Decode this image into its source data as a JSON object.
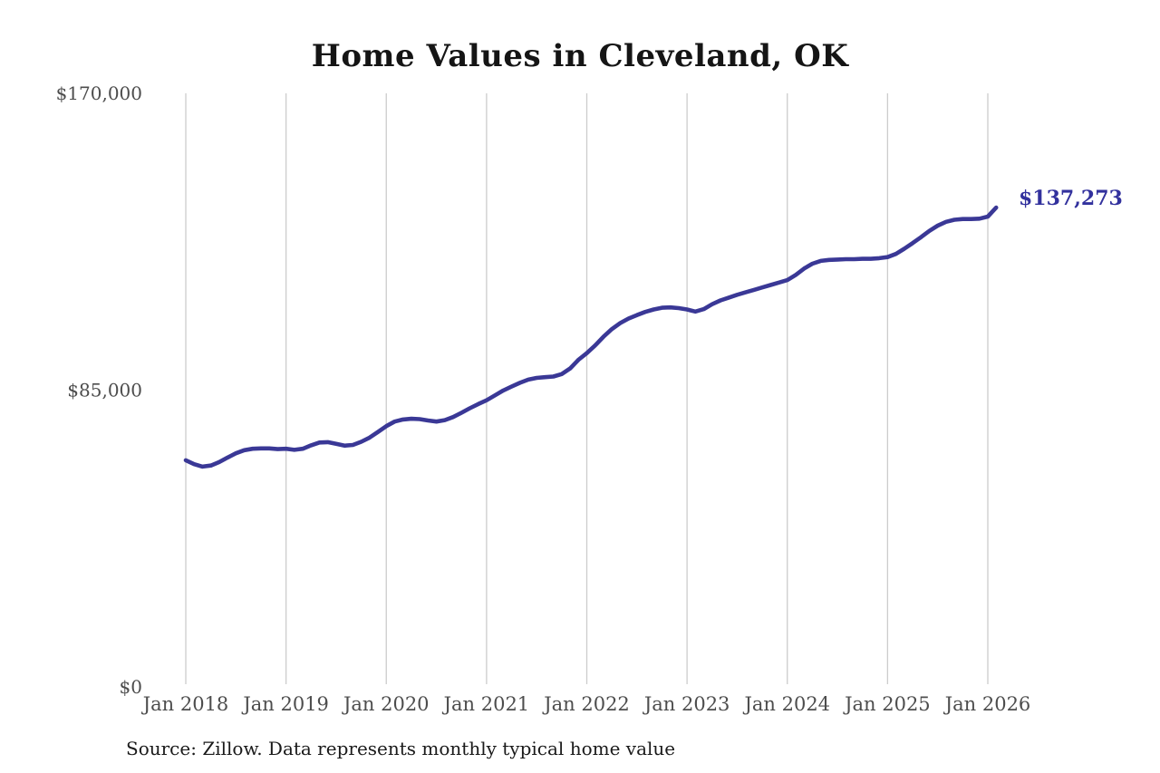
{
  "chart_data": {
    "type": "line",
    "title": "Home Values in Cleveland, OK",
    "x": [
      "2018-01",
      "2018-02",
      "2018-03",
      "2018-04",
      "2018-05",
      "2018-06",
      "2018-07",
      "2018-08",
      "2018-09",
      "2018-10",
      "2018-11",
      "2018-12",
      "2019-01",
      "2019-02",
      "2019-03",
      "2019-04",
      "2019-05",
      "2019-06",
      "2019-07",
      "2019-08",
      "2019-09",
      "2019-10",
      "2019-11",
      "2019-12",
      "2020-01",
      "2020-02",
      "2020-03",
      "2020-04",
      "2020-05",
      "2020-06",
      "2020-07",
      "2020-08",
      "2020-09",
      "2020-10",
      "2020-11",
      "2020-12",
      "2021-01",
      "2021-02",
      "2021-03",
      "2021-04",
      "2021-05",
      "2021-06",
      "2021-07",
      "2021-08",
      "2021-09",
      "2021-10",
      "2021-11",
      "2021-12",
      "2022-01",
      "2022-02",
      "2022-03",
      "2022-04",
      "2022-05",
      "2022-06",
      "2022-07",
      "2022-08",
      "2022-09",
      "2022-10",
      "2022-11",
      "2022-12",
      "2023-01",
      "2023-02",
      "2023-03",
      "2023-04",
      "2023-05",
      "2023-06",
      "2023-07",
      "2023-08",
      "2023-09",
      "2023-10",
      "2023-11",
      "2023-12",
      "2024-01",
      "2024-02",
      "2024-03",
      "2024-04",
      "2024-05",
      "2024-06",
      "2024-07",
      "2024-08",
      "2024-09",
      "2024-10",
      "2024-11",
      "2024-12",
      "2025-01",
      "2025-02",
      "2025-03",
      "2025-04",
      "2025-05",
      "2025-06",
      "2025-07",
      "2025-08",
      "2025-09",
      "2025-10",
      "2025-11",
      "2025-12",
      "2026-01",
      "2026-02"
    ],
    "values": [
      64900,
      63800,
      63100,
      63400,
      64400,
      65700,
      66900,
      67800,
      68200,
      68300,
      68300,
      68100,
      68200,
      67900,
      68200,
      69200,
      70000,
      70100,
      69600,
      69100,
      69300,
      70200,
      71400,
      73000,
      74700,
      76000,
      76600,
      76800,
      76700,
      76300,
      76000,
      76400,
      77300,
      78500,
      79800,
      81000,
      82100,
      83500,
      84900,
      86000,
      87100,
      88000,
      88500,
      88700,
      88900,
      89600,
      91200,
      93700,
      95600,
      97800,
      100300,
      102500,
      104200,
      105500,
      106500,
      107400,
      108100,
      108600,
      108700,
      108500,
      108100,
      107500,
      108200,
      109600,
      110700,
      111500,
      112300,
      113000,
      113700,
      114400,
      115100,
      115800,
      116500,
      118000,
      119800,
      121200,
      122000,
      122300,
      122400,
      122500,
      122500,
      122600,
      122600,
      122800,
      123100,
      124000,
      125500,
      127100,
      128800,
      130600,
      132100,
      133200,
      133800,
      134000,
      134000,
      134100,
      134700,
      137273
    ],
    "x_tick_labels": [
      "Jan 2018",
      "Jan 2019",
      "Jan 2020",
      "Jan 2021",
      "Jan 2022",
      "Jan 2023",
      "Jan 2024",
      "Jan 2025",
      "Jan 2026"
    ],
    "y_ticks": [
      {
        "value": 0,
        "label": "$0"
      },
      {
        "value": 85000,
        "label": "$85,000"
      },
      {
        "value": 170000,
        "label": "$170,000"
      }
    ],
    "ylim": [
      0,
      170000
    ],
    "xlabel": "",
    "ylabel": "",
    "grid": "vertical-year-lines-only",
    "legend": "none",
    "line_color": "#3a3896",
    "grid_color": "#cccccc",
    "tick_label_color": "#4d4d4d",
    "annotation": {
      "text": "$137,273",
      "color": "#32319d",
      "position": "end-of-line"
    },
    "source_note": "Source: Zillow. Data represents monthly typical home value"
  }
}
